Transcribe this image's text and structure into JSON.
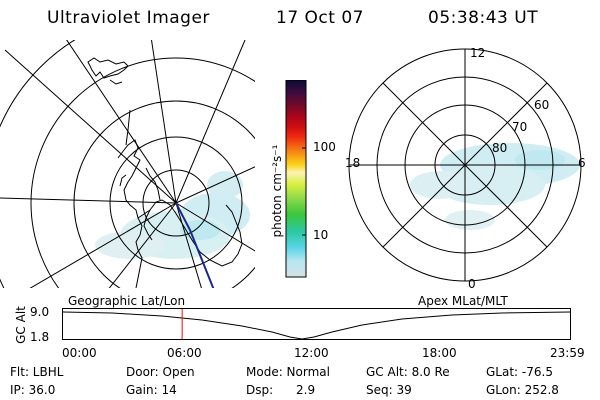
{
  "header": {
    "title": "Ultraviolet Imager",
    "date": "17 Oct 07",
    "time": "05:38:43 UT"
  },
  "geo_map_label": "Geographic Lat/Lon",
  "mlt_map": {
    "label": "Apex MLat/MLT",
    "clock_labels": [
      "12",
      "18",
      "6",
      "0"
    ],
    "lat_labels": [
      "60",
      "70",
      "80"
    ]
  },
  "colorbar": {
    "unit_label": "photon cm⁻²s⁻¹",
    "scale": "log",
    "tick_labels": [
      "100",
      "10"
    ],
    "colors": [
      "#0b0b33",
      "#3a0c40",
      "#6b0b2c",
      "#a4061c",
      "#d10d12",
      "#ef2b12",
      "#f36a13",
      "#f8a416",
      "#fbd21a",
      "#fbf3b4",
      "#d9ef40",
      "#8fd94a",
      "#3ec63c",
      "#2cc8a4",
      "#5ad5e7",
      "#b8e6f0",
      "#d3e3e6"
    ]
  },
  "alt_plot": {
    "ylabel": "GC Alt",
    "y_ticks": [
      "9.0",
      "1.8"
    ],
    "x_ticks": [
      "00:00",
      "06:00",
      "12:00",
      "18:00",
      "23:59"
    ],
    "current_time_fraction": 0.235,
    "marker_color": "#ff0000"
  },
  "info": {
    "row1": {
      "flt": "Flt: LBHL",
      "door": "Door: Open",
      "mode": "Mode: Normal",
      "gcalt": "GC Alt: 8.0 Re",
      "glat": "GLat: -76.5"
    },
    "row2": {
      "ip": "IP: 36.0",
      "gain": "Gain: 14",
      "dsp": "Dsp:      2.9",
      "seq": "Seq: 39",
      "glon": "GLon: 252.8"
    }
  }
}
